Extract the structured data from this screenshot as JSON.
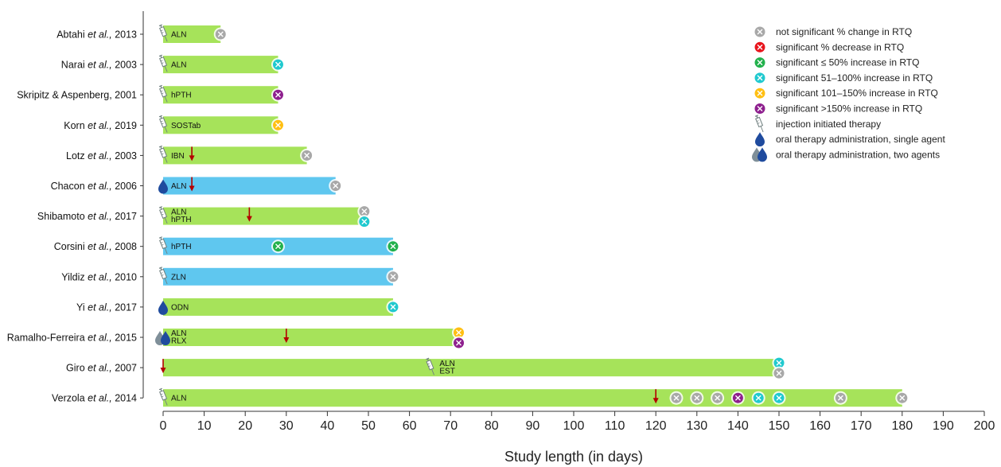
{
  "chart_data": {
    "type": "bar",
    "title": "",
    "xlabel": "Study length (in days)",
    "xlim": [
      0,
      200
    ],
    "xticks": [
      0,
      10,
      20,
      30,
      40,
      50,
      60,
      70,
      80,
      90,
      100,
      110,
      120,
      130,
      140,
      150,
      160,
      170,
      180,
      190,
      200
    ],
    "legend_position": "top-right",
    "colors": {
      "bar_injection": "#a6e35a",
      "bar_oral": "#5fc7ef",
      "arrow": "#b30000",
      "syringe": "#6f7f7f",
      "drop_single": "#1f4b9e",
      "drop_second": "#7f8f99"
    },
    "outcome_colors": {
      "ns": "#a8a8a8",
      "dec": "#e8141c",
      "inc50": "#22b14c",
      "inc100": "#20c9cf",
      "inc150": "#ffbf12",
      "inc150plus": "#8e1f8e"
    },
    "legend": [
      {
        "key": "ns",
        "label": "not significant % change in RTQ"
      },
      {
        "key": "dec",
        "label": "significant % decrease in RTQ"
      },
      {
        "key": "inc50",
        "label": "significant ≤ 50% increase in RTQ"
      },
      {
        "key": "inc100",
        "label": "significant 51–100% increase in RTQ"
      },
      {
        "key": "inc150",
        "label": "significant 101–150% increase in RTQ"
      },
      {
        "key": "inc150plus",
        "label": "significant >150% increase in RTQ"
      },
      {
        "key": "syringe",
        "label": "injection initiated therapy"
      },
      {
        "key": "drop1",
        "label": "oral therapy administration, single agent"
      },
      {
        "key": "drop2",
        "label": "oral therapy administration, two agents"
      }
    ],
    "studies": [
      {
        "label": [
          "Abtahi ",
          "et al.,",
          " 2013"
        ],
        "length": 14,
        "bar": "inj",
        "icon": "syringe",
        "icon_x": 0,
        "drug": [
          "ALN"
        ],
        "drug_x": 0,
        "arrows": [],
        "markers": [
          {
            "x": 14,
            "o": "ns"
          }
        ]
      },
      {
        "label": [
          "Narai ",
          "et al.,",
          " 2003"
        ],
        "length": 28,
        "bar": "inj",
        "icon": "syringe",
        "icon_x": 0,
        "drug": [
          "ALN"
        ],
        "drug_x": 0,
        "arrows": [],
        "markers": [
          {
            "x": 28,
            "o": "inc100"
          }
        ]
      },
      {
        "label": [
          "Skripitz & Aspenberg, 2001",
          "",
          ""
        ],
        "length": 28,
        "bar": "inj",
        "icon": "syringe",
        "icon_x": 0,
        "drug": [
          "hPTH"
        ],
        "drug_x": 0,
        "arrows": [],
        "markers": [
          {
            "x": 28,
            "o": "inc150plus"
          }
        ]
      },
      {
        "label": [
          "Korn ",
          "et al.,",
          " 2019"
        ],
        "length": 28,
        "bar": "inj",
        "icon": "syringe",
        "icon_x": 0,
        "drug": [
          "SOSTab"
        ],
        "drug_x": 0,
        "arrows": [],
        "markers": [
          {
            "x": 28,
            "o": "inc150"
          }
        ]
      },
      {
        "label": [
          "Lotz ",
          "et al.,",
          " 2003"
        ],
        "length": 35,
        "bar": "inj",
        "icon": "syringe",
        "icon_x": 0,
        "drug": [
          "IBN"
        ],
        "drug_x": 0,
        "arrows": [
          7
        ],
        "markers": [
          {
            "x": 35,
            "o": "ns"
          }
        ]
      },
      {
        "label": [
          "Chacon ",
          "et al.,",
          " 2006"
        ],
        "length": 42,
        "bar": "oral",
        "icon": "drop1",
        "icon_x": 0,
        "drug": [
          "ALN"
        ],
        "drug_x": 0,
        "arrows": [
          7
        ],
        "markers": [
          {
            "x": 42,
            "o": "ns"
          }
        ]
      },
      {
        "label": [
          "Shibamoto ",
          "et al.,",
          " 2017"
        ],
        "length": 49,
        "bar": "inj",
        "icon": "syringe",
        "icon_x": 0,
        "drug": [
          "ALN",
          "hPTH"
        ],
        "drug_x": 0,
        "arrows": [
          21
        ],
        "markers": [
          {
            "x": 49,
            "o": "ns",
            "dy": -6
          },
          {
            "x": 49,
            "o": "inc100",
            "dy": 7
          }
        ]
      },
      {
        "label": [
          "Corsini ",
          "et al.,",
          " 2008"
        ],
        "length": 56,
        "bar": "oral",
        "icon": "syringe",
        "icon_x": 0,
        "drug": [
          "hPTH"
        ],
        "drug_x": 0,
        "arrows": [],
        "markers": [
          {
            "x": 28,
            "o": "inc50"
          },
          {
            "x": 56,
            "o": "inc50"
          }
        ]
      },
      {
        "label": [
          "Yildiz ",
          "et al.,",
          " 2010"
        ],
        "length": 56,
        "bar": "oral",
        "icon": "syringe",
        "icon_x": 0,
        "drug": [
          "ZLN"
        ],
        "drug_x": 0,
        "arrows": [],
        "markers": [
          {
            "x": 56,
            "o": "ns"
          }
        ]
      },
      {
        "label": [
          "Yi ",
          "et al.,",
          " 2017"
        ],
        "length": 56,
        "bar": "inj",
        "icon": "drop1",
        "icon_x": 0,
        "drug": [
          "ODN"
        ],
        "drug_x": 0,
        "arrows": [],
        "markers": [
          {
            "x": 56,
            "o": "inc100"
          }
        ]
      },
      {
        "label": [
          "Ramalho-Ferreira ",
          "et al.,",
          " 2015"
        ],
        "length": 72,
        "bar": "inj",
        "icon": "drop2",
        "icon_x": 0,
        "drug": [
          "ALN",
          "RLX"
        ],
        "drug_x": 0,
        "arrows": [
          30
        ],
        "markers": [
          {
            "x": 72,
            "o": "inc150",
            "dy": -6
          },
          {
            "x": 72,
            "o": "inc150plus",
            "dy": 7
          }
        ]
      },
      {
        "label": [
          "Giro ",
          "et al.,",
          " 2007"
        ],
        "length": 150,
        "bar": "inj",
        "icon": "syringe",
        "icon_x": 65,
        "drug": [
          "ALN",
          "EST"
        ],
        "drug_x": 65,
        "arrows": [
          0
        ],
        "markers": [
          {
            "x": 150,
            "o": "inc100",
            "dy": -6
          },
          {
            "x": 150,
            "o": "ns",
            "dy": 7
          }
        ]
      },
      {
        "label": [
          "Verzola ",
          "et al.,",
          " 2014"
        ],
        "length": 180,
        "bar": "inj",
        "icon": "syringe",
        "icon_x": 0,
        "drug": [
          "ALN"
        ],
        "drug_x": 0,
        "arrows": [
          120
        ],
        "markers": [
          {
            "x": 125,
            "o": "ns"
          },
          {
            "x": 130,
            "o": "ns"
          },
          {
            "x": 135,
            "o": "ns"
          },
          {
            "x": 140,
            "o": "inc150plus"
          },
          {
            "x": 145,
            "o": "inc100"
          },
          {
            "x": 150,
            "o": "inc100"
          },
          {
            "x": 165,
            "o": "ns"
          },
          {
            "x": 180,
            "o": "ns"
          }
        ]
      }
    ]
  }
}
